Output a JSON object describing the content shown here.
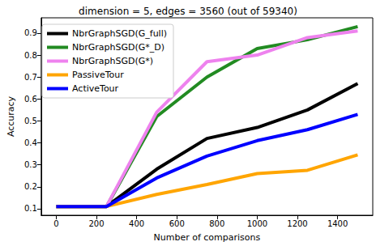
{
  "chart_data": {
    "type": "line",
    "title": "dimension = 5, edges = 3560 (out of 59340)",
    "x_label": "Number of comparisons",
    "y_label": "Accuracy",
    "x": [
      0,
      250,
      500,
      750,
      1000,
      1250,
      1500
    ],
    "series": [
      {
        "name": "NbrGraphSGD(G_full)",
        "color": "#000000",
        "values": [
          0.11,
          0.11,
          0.28,
          0.42,
          0.47,
          0.55,
          0.67
        ]
      },
      {
        "name": "NbrGraphSGD(G*_D)",
        "color": "#228b22",
        "values": [
          0.11,
          0.11,
          0.52,
          0.7,
          0.83,
          0.87,
          0.93
        ]
      },
      {
        "name": "NbrGraphSGD(G*)",
        "color": "#ee82ee",
        "values": [
          0.11,
          0.11,
          0.54,
          0.77,
          0.8,
          0.88,
          0.91
        ]
      },
      {
        "name": "PassiveTour",
        "color": "#ffa500",
        "values": [
          0.11,
          0.11,
          0.165,
          0.21,
          0.26,
          0.275,
          0.345
        ]
      },
      {
        "name": "ActiveTour",
        "color": "#0000ff",
        "values": [
          0.11,
          0.11,
          0.24,
          0.34,
          0.41,
          0.46,
          0.53
        ]
      }
    ],
    "xlim": [
      -75,
      1575
    ],
    "xticks": [
      0,
      200,
      400,
      600,
      800,
      1000,
      1200,
      1400
    ],
    "ylim": [
      0.07,
      0.97
    ],
    "yticks": [
      0.1,
      0.2,
      0.3,
      0.4,
      0.5,
      0.6,
      0.7,
      0.8,
      0.9
    ],
    "grid": false,
    "legend": "upper left"
  }
}
